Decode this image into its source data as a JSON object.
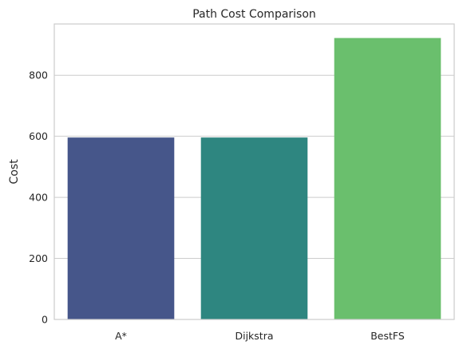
{
  "chart_data": {
    "type": "bar",
    "title": "Path Cost Comparison",
    "xlabel": "",
    "ylabel": "Cost",
    "categories": [
      "A*",
      "Dijkstra",
      "BestFS"
    ],
    "values": [
      596,
      596,
      922
    ],
    "colors": [
      "#46568a",
      "#2e8680",
      "#6abf6d"
    ],
    "ylim": [
      0,
      968
    ],
    "yticks": [
      0,
      200,
      400,
      600,
      800
    ],
    "grid": true,
    "grid_axis": "y"
  }
}
